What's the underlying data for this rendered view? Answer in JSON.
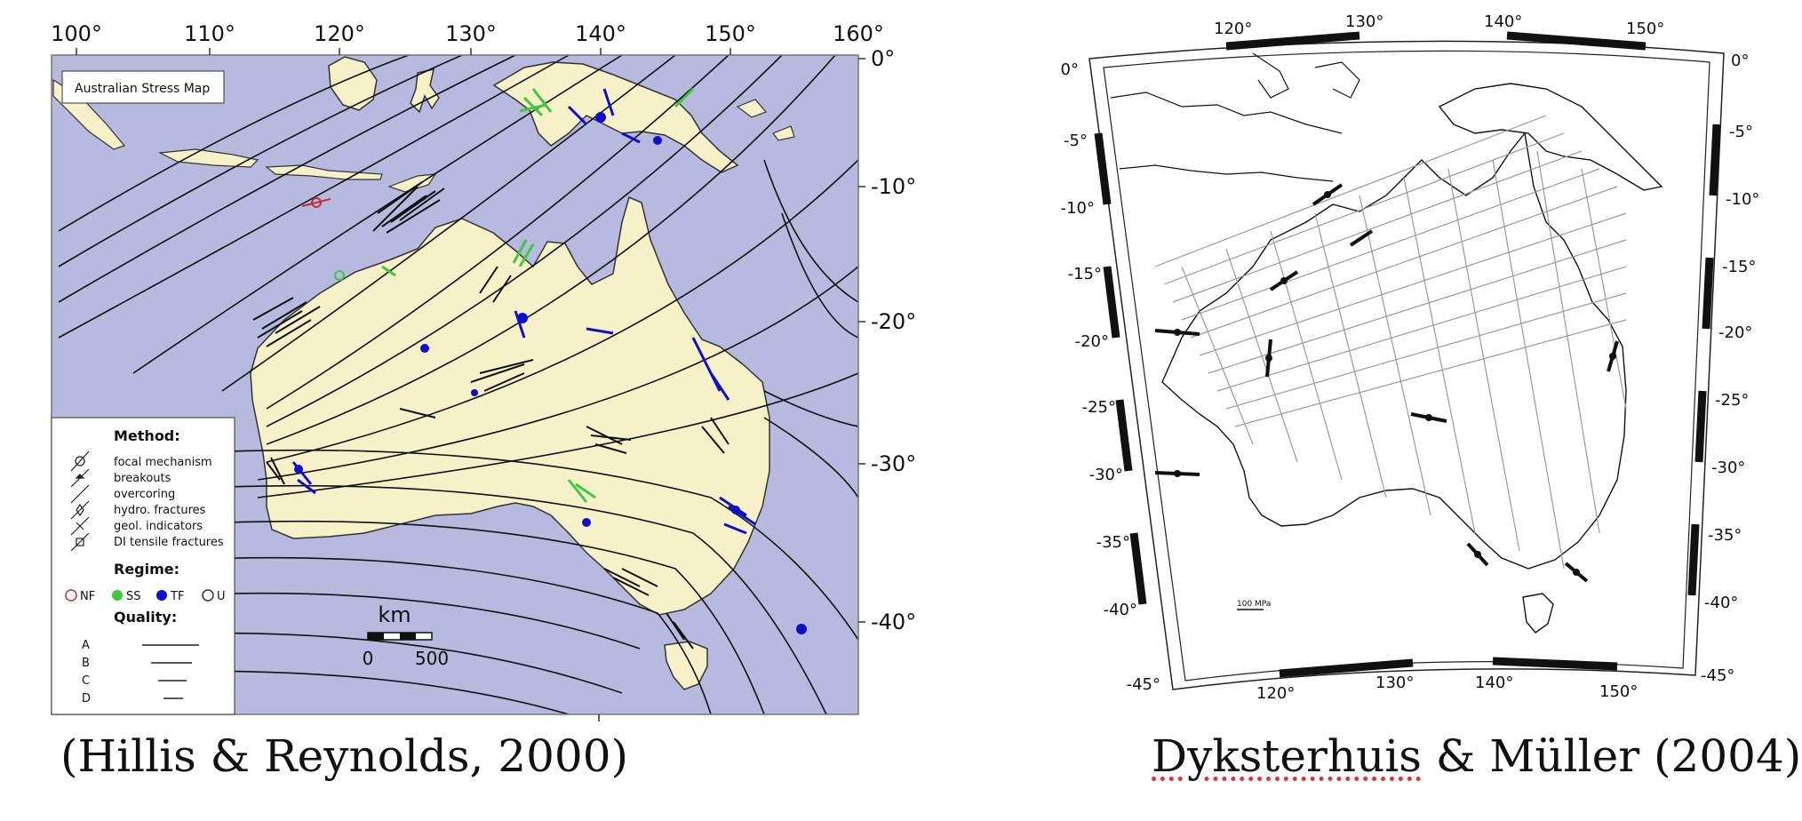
{
  "left_map": {
    "title_box": "Australian Stress Map",
    "lon_labels": [
      "100°",
      "110°",
      "120°",
      "130°",
      "140°",
      "150°",
      "160°"
    ],
    "lat_labels": [
      "0°",
      "-10°",
      "-20°",
      "-30°",
      "-40°"
    ],
    "legend": {
      "method_title": "Method:",
      "methods": [
        "focal mechanism",
        "breakouts",
        "overcoring",
        "hydro. fractures",
        "geol. indicators",
        "DI tensile fractures"
      ],
      "regime_title": "Regime:",
      "regimes": [
        {
          "label": "NF",
          "color": "#c0303a"
        },
        {
          "label": "SS",
          "color": "#3ec83e"
        },
        {
          "label": "TF",
          "color": "#1010cc"
        },
        {
          "label": "U",
          "color": "#333333"
        }
      ],
      "quality_title": "Quality:",
      "qualities": [
        "A",
        "B",
        "C",
        "D"
      ]
    },
    "scale": {
      "unit": "km",
      "min": "0",
      "max": "500"
    },
    "colors": {
      "ocean": "#b7b9de",
      "land": "#f6f1c8",
      "trajectory": "#111111"
    }
  },
  "right_map": {
    "top_lon_labels": [
      "120°",
      "130°",
      "140°",
      "150°"
    ],
    "bottom_lon_labels": [
      "120°",
      "130°",
      "140°",
      "150°"
    ],
    "left_lat_labels": [
      "0°",
      "-5°",
      "-10°",
      "-15°",
      "-20°",
      "-25°",
      "-30°",
      "-35°",
      "-40°",
      "-45°"
    ],
    "right_lat_labels": [
      "0°",
      "-5°",
      "-10°",
      "-15°",
      "-20°",
      "-25°",
      "-30°",
      "-35°",
      "-40°",
      "-45°"
    ],
    "scale_label": "100 MPa"
  },
  "captions": {
    "left": "(Hillis & Reynolds, 2000)",
    "right_part1": "Dyksterhuis",
    "right_part2": " & Müller (2004)"
  }
}
